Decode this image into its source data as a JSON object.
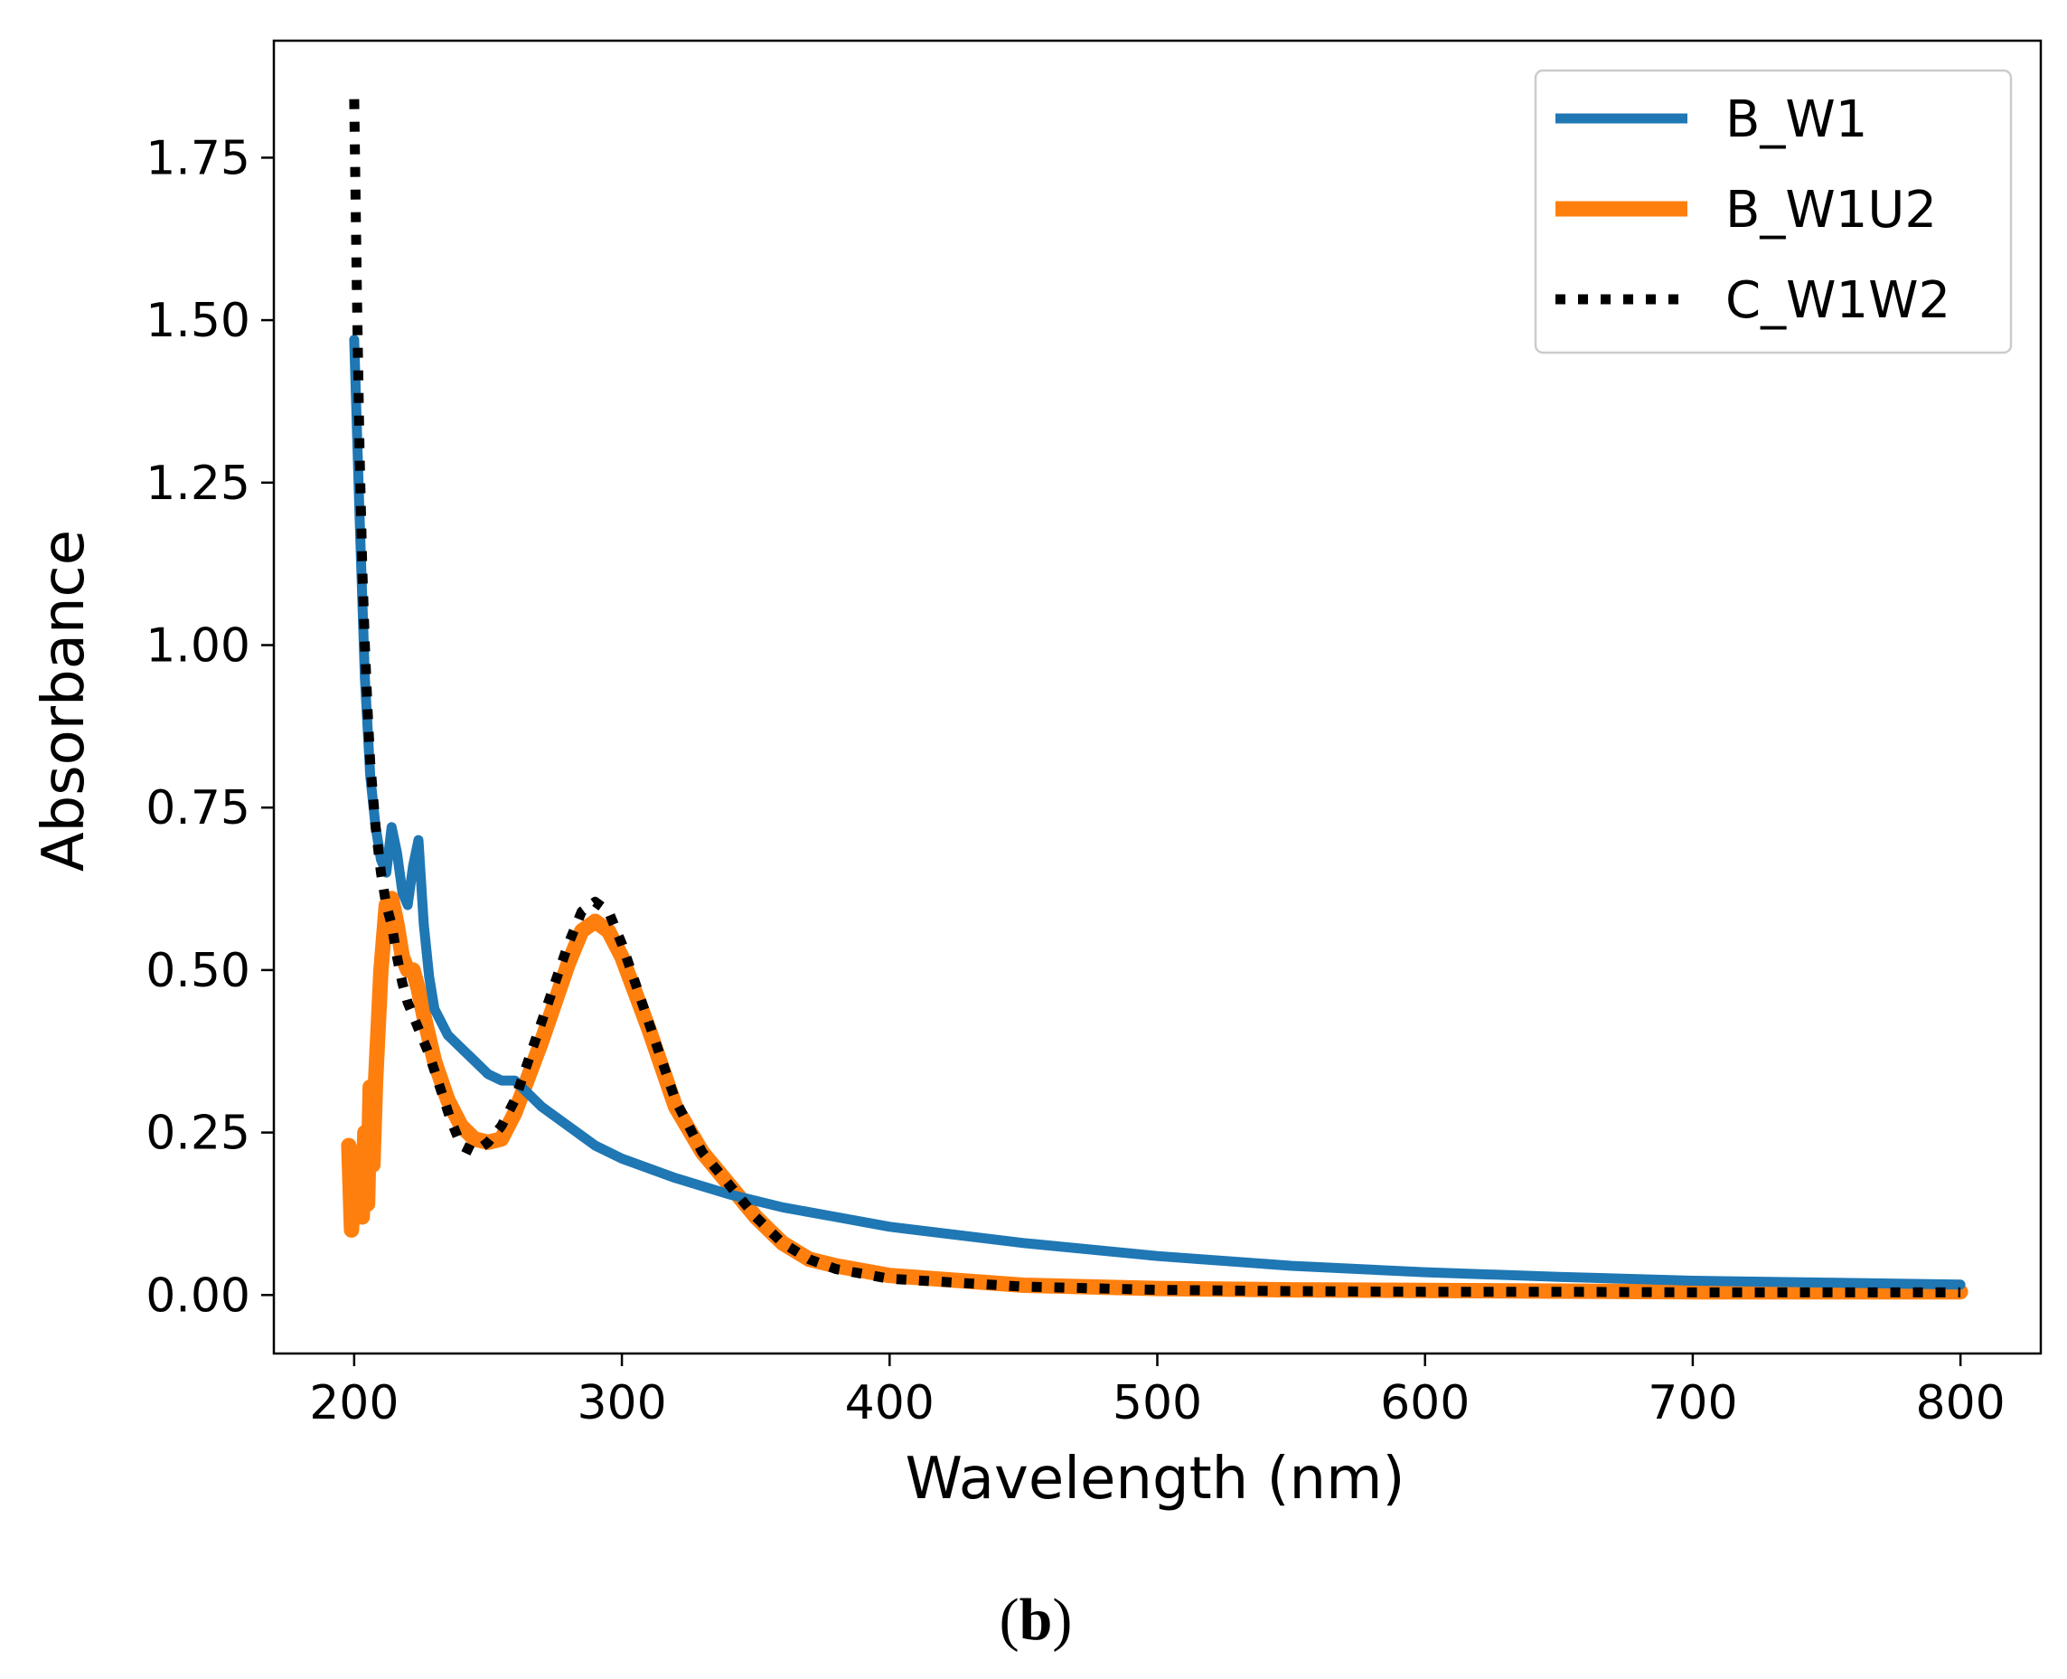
{
  "chart_data": {
    "type": "line",
    "title": "",
    "xlabel": "Wavelength (nm)",
    "ylabel": "Absorbance",
    "panel_label": {
      "open": "(",
      "letter": "b",
      "close": ")"
    },
    "xlim": [
      170,
      830
    ],
    "ylim": [
      -0.09,
      1.93
    ],
    "xticks": [
      200,
      300,
      400,
      500,
      600,
      700,
      800
    ],
    "xtick_labels": [
      "200",
      "300",
      "400",
      "500",
      "600",
      "700",
      "800"
    ],
    "yticks": [
      0.0,
      0.25,
      0.5,
      0.75,
      1.0,
      1.25,
      1.5,
      1.75
    ],
    "ytick_labels": [
      "0.00",
      "0.25",
      "0.50",
      "0.75",
      "1.00",
      "1.25",
      "1.50",
      "1.75"
    ],
    "grid": false,
    "legend_position": "top-right",
    "series": [
      {
        "name": "B_W1",
        "color": "#1f77b4",
        "style": "solid",
        "x": [
          200,
          202,
          204,
          206,
          208,
          210,
          212,
          214,
          216,
          218,
          220,
          222,
          224,
          226,
          228,
          230,
          235,
          240,
          245,
          250,
          255,
          260,
          265,
          270,
          280,
          290,
          300,
          320,
          340,
          360,
          380,
          400,
          450,
          500,
          550,
          600,
          650,
          700,
          750,
          800
        ],
        "y": [
          1.47,
          1.2,
          0.95,
          0.8,
          0.72,
          0.67,
          0.65,
          0.72,
          0.68,
          0.62,
          0.6,
          0.66,
          0.7,
          0.57,
          0.49,
          0.44,
          0.4,
          0.38,
          0.36,
          0.34,
          0.33,
          0.33,
          0.31,
          0.29,
          0.26,
          0.23,
          0.21,
          0.18,
          0.155,
          0.135,
          0.12,
          0.105,
          0.08,
          0.06,
          0.045,
          0.035,
          0.028,
          0.022,
          0.019,
          0.016
        ]
      },
      {
        "name": "B_W1U2",
        "color": "#ff7f0e",
        "style": "solid",
        "x": [
          198,
          199,
          200,
          201,
          202,
          203,
          204,
          205,
          206,
          207,
          208,
          210,
          212,
          214,
          216,
          218,
          220,
          222,
          224,
          226,
          230,
          235,
          240,
          245,
          250,
          255,
          260,
          270,
          280,
          285,
          290,
          295,
          300,
          310,
          320,
          330,
          340,
          350,
          360,
          370,
          380,
          400,
          450,
          500,
          550,
          600,
          650,
          700,
          750,
          800
        ],
        "y": [
          0.23,
          0.1,
          0.18,
          0.12,
          0.22,
          0.12,
          0.25,
          0.14,
          0.32,
          0.2,
          0.33,
          0.5,
          0.6,
          0.61,
          0.57,
          0.52,
          0.5,
          0.5,
          0.47,
          0.43,
          0.36,
          0.3,
          0.26,
          0.24,
          0.235,
          0.24,
          0.28,
          0.39,
          0.51,
          0.56,
          0.575,
          0.56,
          0.52,
          0.41,
          0.29,
          0.22,
          0.17,
          0.12,
          0.08,
          0.055,
          0.045,
          0.03,
          0.015,
          0.01,
          0.008,
          0.007,
          0.006,
          0.005,
          0.005,
          0.005
        ]
      },
      {
        "name": "C_W1W2",
        "color": "#000000",
        "style": "dotted",
        "x": [
          200,
          201,
          202,
          203,
          204,
          205,
          206,
          208,
          210,
          212,
          214,
          216,
          218,
          220,
          222,
          225,
          228,
          232,
          236,
          240,
          245,
          250,
          255,
          260,
          270,
          280,
          285,
          290,
          295,
          300,
          310,
          320,
          330,
          340,
          350,
          360,
          370,
          380,
          400,
          450,
          500,
          550,
          600,
          650,
          700,
          750,
          800
        ],
        "y": [
          1.84,
          1.55,
          1.3,
          1.12,
          1.0,
          0.9,
          0.82,
          0.72,
          0.65,
          0.6,
          0.57,
          0.52,
          0.48,
          0.45,
          0.43,
          0.4,
          0.37,
          0.32,
          0.27,
          0.23,
          0.22,
          0.235,
          0.26,
          0.3,
          0.42,
          0.54,
          0.59,
          0.605,
          0.59,
          0.54,
          0.42,
          0.3,
          0.22,
          0.17,
          0.12,
          0.08,
          0.055,
          0.04,
          0.025,
          0.013,
          0.008,
          0.006,
          0.005,
          0.005,
          0.004,
          0.004,
          0.004
        ]
      }
    ]
  }
}
